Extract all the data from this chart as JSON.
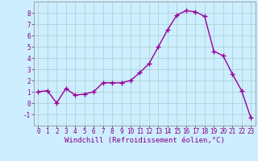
{
  "x": [
    0,
    1,
    2,
    3,
    4,
    5,
    6,
    7,
    8,
    9,
    10,
    11,
    12,
    13,
    14,
    15,
    16,
    17,
    18,
    19,
    20,
    21,
    22,
    23
  ],
  "y": [
    1.0,
    1.1,
    0.0,
    1.3,
    0.7,
    0.8,
    1.0,
    1.8,
    1.8,
    1.8,
    2.0,
    2.7,
    3.5,
    5.0,
    6.5,
    7.8,
    8.2,
    8.1,
    7.7,
    4.6,
    4.2,
    2.6,
    1.1,
    -1.3
  ],
  "line_color": "#990099",
  "marker": "+",
  "markersize": 4,
  "linewidth": 1.0,
  "background_color": "#cceeff",
  "grid_color": "#aacccc",
  "xlabel": "Windchill (Refroidissement éolien,°C)",
  "xlim": [
    -0.5,
    23.5
  ],
  "ylim": [
    -2,
    9
  ],
  "yticks": [
    -1,
    0,
    1,
    2,
    3,
    4,
    5,
    6,
    7,
    8
  ],
  "xticks": [
    0,
    1,
    2,
    3,
    4,
    5,
    6,
    7,
    8,
    9,
    10,
    11,
    12,
    13,
    14,
    15,
    16,
    17,
    18,
    19,
    20,
    21,
    22,
    23
  ],
  "tick_color": "#880088",
  "label_color": "#880088",
  "tick_fontsize": 5.5,
  "xlabel_fontsize": 6.5,
  "markeredgewidth": 1.0
}
